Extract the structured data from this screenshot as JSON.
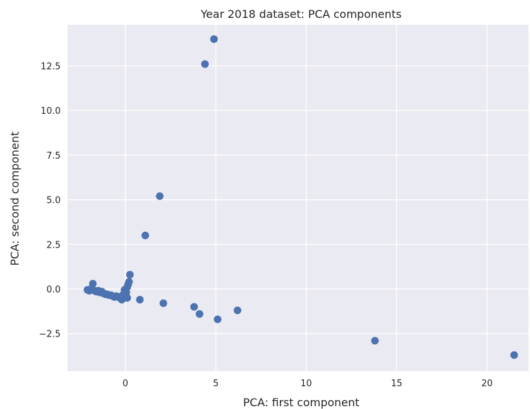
{
  "chart_data": {
    "type": "scatter",
    "title": "Year 2018 dataset: PCA components",
    "xlabel": "PCA: first component",
    "ylabel": "PCA: second component",
    "xlim": [
      -3.2,
      22.3
    ],
    "ylim": [
      -4.6,
      14.8
    ],
    "grid": true,
    "x_ticks": [
      0,
      5,
      10,
      15,
      20
    ],
    "x_tick_labels": [
      "0",
      "5",
      "10",
      "15",
      "20"
    ],
    "y_ticks": [
      -2.5,
      0.0,
      2.5,
      5.0,
      7.5,
      10.0,
      12.5
    ],
    "y_tick_labels": [
      "−2.5",
      "0.0",
      "2.5",
      "5.0",
      "7.5",
      "10.0",
      "12.5"
    ],
    "series": [
      {
        "color": "#4c72b0",
        "x": [
          -2.1,
          -2.0,
          -1.9,
          -1.8,
          -1.7,
          -1.6,
          -1.5,
          -1.4,
          -1.3,
          -1.2,
          -1.1,
          -1.0,
          -0.9,
          -0.8,
          -0.7,
          -0.6,
          -0.5,
          -0.4,
          -0.3,
          -0.2,
          -0.1,
          0.0,
          0.05,
          0.1,
          0.15,
          0.2,
          0.25,
          -0.05,
          -0.15,
          0.1,
          -1.8,
          0.8,
          2.1,
          3.8,
          4.1,
          5.1,
          6.2,
          13.8,
          21.5,
          1.1,
          1.9,
          4.4,
          4.9
        ],
        "y": [
          -0.05,
          -0.1,
          0.0,
          -0.05,
          -0.1,
          -0.15,
          -0.1,
          -0.2,
          -0.15,
          -0.25,
          -0.3,
          -0.3,
          -0.35,
          -0.35,
          -0.4,
          -0.45,
          -0.4,
          -0.45,
          -0.5,
          -0.6,
          -0.5,
          -0.4,
          -0.2,
          0.1,
          0.25,
          0.4,
          0.8,
          -0.05,
          -0.35,
          -0.5,
          0.3,
          -0.6,
          -0.8,
          -1.0,
          -1.4,
          -1.7,
          -1.2,
          -2.9,
          -3.7,
          3.0,
          5.2,
          12.6,
          14.0
        ]
      }
    ]
  }
}
